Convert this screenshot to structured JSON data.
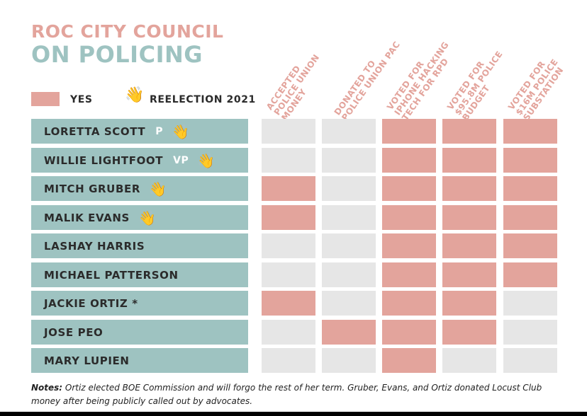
{
  "title_line1": "ROC CITY COUNCIL",
  "title_line2": "ON POLICING",
  "legend": {
    "yes_label": "YES",
    "yes_color": "#e3a49c",
    "reelection_icon": "waving-hand-icon",
    "reelection_label": "REELECTION 2021"
  },
  "colors": {
    "yes": "#e3a49c",
    "no": "#e6e6e6",
    "name_bg": "#9ec3c1",
    "title_pink": "#e3a49c",
    "title_teal": "#9ec3c1"
  },
  "chart_data": {
    "type": "table",
    "columns": [
      {
        "lines": [
          "ACCEPTED",
          "POLICE UNION",
          "MONEY"
        ]
      },
      {
        "lines": [
          "DONATED TO",
          "POLICE UNION PAC"
        ]
      },
      {
        "lines": [
          "VOTED FOR",
          "IPHONE HACKING",
          "TECH FOR RPD"
        ]
      },
      {
        "lines": [
          "VOTED FOR",
          "$95.8M POLICE",
          "BUDGET"
        ]
      },
      {
        "lines": [
          "VOTED FOR",
          "$16M POLICE",
          "SUBSTATION"
        ]
      }
    ],
    "rows": [
      {
        "name": "LORETTA SCOTT",
        "role": "P",
        "reelection": true,
        "values": [
          0,
          0,
          1,
          1,
          1
        ]
      },
      {
        "name": "WILLIE LIGHTFOOT",
        "role": "VP",
        "reelection": true,
        "values": [
          0,
          0,
          1,
          1,
          1
        ]
      },
      {
        "name": "MITCH GRUBER",
        "role": "",
        "reelection": true,
        "values": [
          1,
          0,
          1,
          1,
          1
        ]
      },
      {
        "name": "MALIK EVANS",
        "role": "",
        "reelection": true,
        "values": [
          1,
          0,
          1,
          1,
          1
        ]
      },
      {
        "name": "LASHAY HARRIS",
        "role": "",
        "reelection": false,
        "values": [
          0,
          0,
          1,
          1,
          1
        ]
      },
      {
        "name": "MICHAEL PATTERSON",
        "role": "",
        "reelection": false,
        "values": [
          0,
          0,
          1,
          1,
          1
        ]
      },
      {
        "name": "JACKIE ORTIZ *",
        "role": "",
        "reelection": false,
        "values": [
          1,
          0,
          1,
          1,
          0
        ]
      },
      {
        "name": "JOSE PEO",
        "role": "",
        "reelection": false,
        "values": [
          0,
          1,
          1,
          1,
          0
        ]
      },
      {
        "name": "MARY LUPIEN",
        "role": "",
        "reelection": false,
        "values": [
          0,
          0,
          1,
          0,
          0
        ]
      }
    ]
  },
  "notes": {
    "label": "Notes:",
    "text": " Ortiz elected BOE Commission and will forgo the rest of her term. Gruber, Evans, and Ortiz donated Locust Club money after being publicly called out by advocates."
  }
}
